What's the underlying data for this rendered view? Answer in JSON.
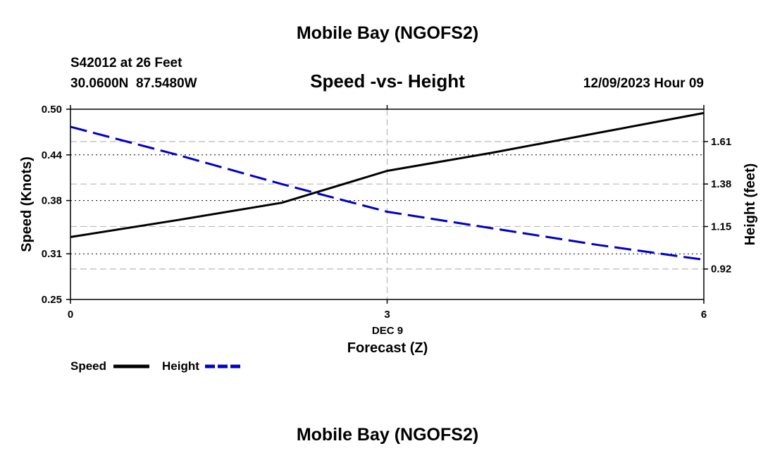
{
  "header": {
    "top_title": "Mobile Bay (NGOFS2)",
    "bottom_title": "Mobile Bay (NGOFS2)",
    "station_line": "S42012 at 26 Feet",
    "coords_line": "30.0600N  87.5480W",
    "datetime_line": "12/09/2023 Hour 09"
  },
  "colors": {
    "speed": "#000000",
    "height": "#0000cc",
    "grid": "#b8b8b8"
  },
  "chart_data": {
    "type": "line",
    "title": "Speed -vs- Height",
    "xlabel": "Forecast (Z)",
    "date_label": "DEC 9",
    "ylabel_left": "Speed (Knots)",
    "ylabel_right": "Height (feet)",
    "xlim": [
      0,
      6
    ],
    "ylim_left": [
      0.25,
      0.5
    ],
    "ylim_right": [
      0.755,
      1.785
    ],
    "x_ticks": [
      0,
      3,
      6
    ],
    "x_tick_labels": [
      "0",
      "3",
      "6"
    ],
    "y_left_ticks": [
      0.25,
      0.31,
      0.38,
      0.44,
      0.5
    ],
    "y_left_tick_labels": [
      "0.25",
      "0.31",
      "0.38",
      "0.44",
      "0.50"
    ],
    "y_right_ticks": [
      0.92,
      1.15,
      1.38,
      1.61
    ],
    "y_right_tick_labels": [
      "0.92",
      "1.15",
      "1.38",
      "1.61"
    ],
    "grid": true,
    "series": [
      {
        "name": "Speed",
        "axis": "left",
        "style": "solid",
        "x": [
          0,
          1,
          2,
          3,
          4,
          5,
          6
        ],
        "values": [
          0.332,
          0.354,
          0.377,
          0.419,
          0.443,
          0.469,
          0.495
        ]
      },
      {
        "name": "Height",
        "axis": "right",
        "style": "dashed",
        "x": [
          0,
          1,
          2,
          3,
          4,
          5,
          6
        ],
        "values": [
          1.69,
          1.54,
          1.38,
          1.23,
          1.14,
          1.05,
          0.97
        ]
      }
    ],
    "legend": [
      {
        "label": "Speed",
        "series": "Speed"
      },
      {
        "label": "Height",
        "series": "Height"
      }
    ]
  }
}
